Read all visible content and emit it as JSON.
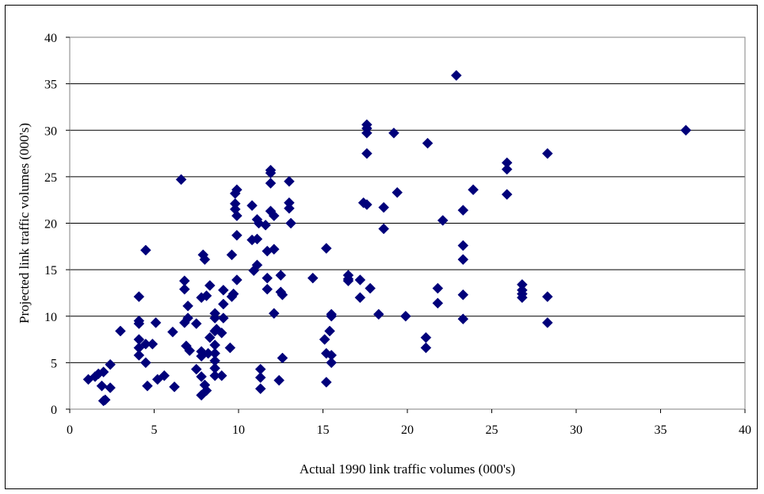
{
  "chart_data": {
    "type": "scatter",
    "title": "",
    "xlabel": "Actual 1990 link traffic volumes (000's)",
    "ylabel": "Projected link traffic volumes (000's)",
    "xlim": [
      0,
      40
    ],
    "ylim": [
      0,
      40
    ],
    "xticks": [
      0,
      5,
      10,
      15,
      20,
      25,
      30,
      35,
      40
    ],
    "yticks": [
      0,
      5,
      10,
      15,
      20,
      25,
      30,
      35,
      40
    ],
    "grid": "horizontal",
    "legend": "none",
    "marker": "diamond",
    "marker_color": "#00007a",
    "points": [
      [
        1.1,
        3.2
      ],
      [
        1.5,
        3.5
      ],
      [
        1.7,
        3.8
      ],
      [
        1.9,
        2.5
      ],
      [
        2.0,
        4.0
      ],
      [
        2.1,
        1.0
      ],
      [
        2.0,
        0.9
      ],
      [
        2.4,
        4.8
      ],
      [
        2.4,
        2.3
      ],
      [
        3.0,
        8.4
      ],
      [
        4.1,
        12.1
      ],
      [
        4.1,
        9.5
      ],
      [
        4.1,
        9.2
      ],
      [
        4.1,
        7.5
      ],
      [
        4.1,
        6.6
      ],
      [
        4.1,
        5.8
      ],
      [
        4.5,
        17.1
      ],
      [
        4.5,
        5.0
      ],
      [
        4.5,
        7.0
      ],
      [
        4.6,
        2.5
      ],
      [
        4.9,
        7.0
      ],
      [
        5.1,
        9.3
      ],
      [
        5.2,
        3.2
      ],
      [
        5.6,
        3.6
      ],
      [
        6.1,
        8.3
      ],
      [
        6.2,
        2.4
      ],
      [
        6.6,
        24.7
      ],
      [
        6.8,
        13.8
      ],
      [
        6.8,
        12.9
      ],
      [
        6.8,
        9.3
      ],
      [
        6.9,
        6.8
      ],
      [
        7.0,
        9.8
      ],
      [
        7.0,
        11.1
      ],
      [
        7.1,
        6.3
      ],
      [
        7.5,
        9.2
      ],
      [
        7.5,
        4.3
      ],
      [
        7.9,
        16.6
      ],
      [
        7.8,
        12.0
      ],
      [
        7.8,
        6.2
      ],
      [
        7.8,
        5.7
      ],
      [
        7.8,
        3.5
      ],
      [
        7.8,
        1.5
      ],
      [
        8.0,
        16.1
      ],
      [
        8.1,
        12.2
      ],
      [
        8.0,
        2.6
      ],
      [
        8.1,
        2.0
      ],
      [
        8.2,
        6.0
      ],
      [
        8.3,
        13.3
      ],
      [
        8.3,
        7.7
      ],
      [
        8.6,
        10.3
      ],
      [
        8.6,
        9.8
      ],
      [
        8.6,
        8.4
      ],
      [
        8.6,
        6.9
      ],
      [
        8.6,
        6.0
      ],
      [
        8.6,
        5.2
      ],
      [
        8.6,
        4.4
      ],
      [
        8.6,
        3.6
      ],
      [
        8.7,
        8.6
      ],
      [
        9.0,
        8.2
      ],
      [
        9.0,
        3.6
      ],
      [
        9.1,
        12.8
      ],
      [
        9.1,
        11.3
      ],
      [
        9.1,
        9.8
      ],
      [
        9.5,
        6.6
      ],
      [
        9.6,
        16.6
      ],
      [
        9.6,
        12.1
      ],
      [
        9.7,
        12.4
      ],
      [
        9.8,
        23.2
      ],
      [
        9.8,
        22.1
      ],
      [
        9.8,
        21.5
      ],
      [
        9.9,
        23.6
      ],
      [
        9.9,
        20.8
      ],
      [
        9.9,
        18.7
      ],
      [
        9.9,
        13.9
      ],
      [
        10.8,
        21.9
      ],
      [
        10.8,
        18.2
      ],
      [
        10.9,
        14.9
      ],
      [
        11.1,
        20.4
      ],
      [
        11.1,
        18.3
      ],
      [
        11.1,
        15.5
      ],
      [
        11.2,
        20.0
      ],
      [
        11.3,
        4.3
      ],
      [
        11.3,
        3.4
      ],
      [
        11.3,
        2.2
      ],
      [
        11.6,
        19.8
      ],
      [
        11.7,
        17.0
      ],
      [
        11.7,
        14.1
      ],
      [
        11.7,
        12.9
      ],
      [
        11.9,
        25.7
      ],
      [
        11.9,
        25.4
      ],
      [
        11.9,
        24.3
      ],
      [
        11.9,
        21.3
      ],
      [
        12.1,
        20.8
      ],
      [
        12.1,
        17.2
      ],
      [
        12.1,
        10.3
      ],
      [
        12.4,
        3.1
      ],
      [
        12.5,
        14.4
      ],
      [
        12.5,
        12.6
      ],
      [
        12.6,
        12.3
      ],
      [
        12.6,
        5.5
      ],
      [
        13.0,
        24.5
      ],
      [
        13.0,
        22.2
      ],
      [
        13.0,
        21.6
      ],
      [
        13.1,
        20.0
      ],
      [
        14.4,
        14.1
      ],
      [
        15.2,
        17.3
      ],
      [
        15.1,
        7.5
      ],
      [
        15.2,
        6.0
      ],
      [
        15.2,
        2.9
      ],
      [
        15.4,
        8.4
      ],
      [
        15.5,
        10.0
      ],
      [
        15.5,
        10.2
      ],
      [
        15.5,
        5.8
      ],
      [
        15.5,
        5.0
      ],
      [
        16.5,
        14.4
      ],
      [
        16.5,
        14.0
      ],
      [
        16.5,
        13.8
      ],
      [
        17.2,
        13.9
      ],
      [
        17.2,
        12.0
      ],
      [
        17.4,
        22.2
      ],
      [
        17.6,
        30.6
      ],
      [
        17.6,
        30.2
      ],
      [
        17.6,
        29.7
      ],
      [
        17.6,
        27.5
      ],
      [
        17.6,
        22.0
      ],
      [
        17.8,
        13.0
      ],
      [
        18.3,
        10.2
      ],
      [
        18.6,
        21.7
      ],
      [
        18.6,
        19.4
      ],
      [
        19.2,
        29.7
      ],
      [
        19.4,
        23.3
      ],
      [
        19.9,
        10.0
      ],
      [
        21.2,
        28.6
      ],
      [
        21.1,
        7.7
      ],
      [
        21.1,
        6.6
      ],
      [
        21.8,
        13.0
      ],
      [
        21.8,
        11.4
      ],
      [
        22.1,
        20.3
      ],
      [
        22.9,
        35.9
      ],
      [
        23.3,
        21.4
      ],
      [
        23.3,
        17.6
      ],
      [
        23.3,
        16.1
      ],
      [
        23.3,
        12.3
      ],
      [
        23.3,
        9.7
      ],
      [
        23.9,
        23.6
      ],
      [
        25.9,
        26.5
      ],
      [
        25.9,
        25.8
      ],
      [
        25.9,
        23.1
      ],
      [
        26.8,
        13.4
      ],
      [
        26.8,
        12.8
      ],
      [
        26.8,
        12.4
      ],
      [
        26.8,
        12.0
      ],
      [
        28.3,
        27.5
      ],
      [
        28.3,
        12.1
      ],
      [
        28.3,
        9.3
      ],
      [
        36.5,
        30.0
      ]
    ]
  }
}
